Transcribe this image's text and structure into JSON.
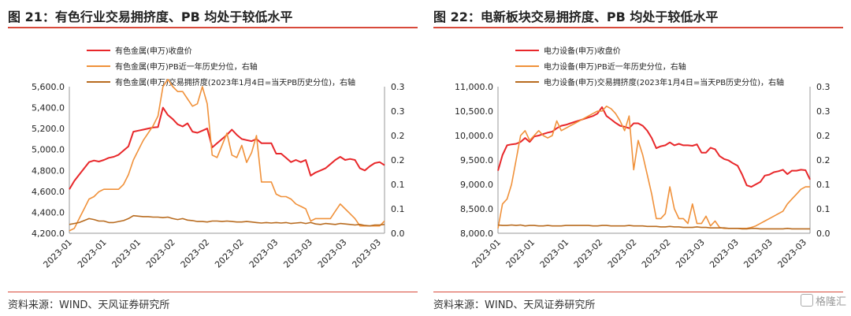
{
  "panels": [
    {
      "title": "图 21：有色行业交易拥挤度、PB 均处于较低水平",
      "source": "资料来源：WIND、天风证券研究所",
      "chart_data": {
        "type": "line",
        "x_tick_labels": [
          "2023-01",
          "2023-01",
          "2023-01",
          "2023-02",
          "2023-02",
          "2023-02",
          "2023-03",
          "2023-03",
          "2023-03",
          "2023-03"
        ],
        "ylim_left": [
          4200,
          5600
        ],
        "yticks_left": [
          "4,200.0",
          "4,400.0",
          "4,600.0",
          "4,800.0",
          "5,000.0",
          "5,200.0",
          "5,400.0",
          "5,600.0"
        ],
        "ylim_right": [
          0,
          0.3
        ],
        "yticks_right": [
          "0.0",
          "0.1",
          "0.1",
          "0.2",
          "0.2",
          "0.3",
          "0.3"
        ],
        "grid": false,
        "legend_position": "top",
        "series": [
          {
            "name": "有色金属(申万)收盘价",
            "axis": "left",
            "color": "#e8272a",
            "values": [
              4620,
              4700,
              4760,
              4820,
              4880,
              4895,
              4885,
              4900,
              4920,
              4930,
              4950,
              4990,
              5030,
              5170,
              5180,
              5190,
              5200,
              5210,
              5215,
              5400,
              5330,
              5290,
              5240,
              5220,
              5250,
              5170,
              5160,
              5180,
              5200,
              5020,
              5060,
              5100,
              5140,
              5190,
              5140,
              5100,
              5090,
              5080,
              5100,
              5060,
              5060,
              5060,
              4960,
              4960,
              4920,
              4880,
              4900,
              4880,
              4900,
              4750,
              4780,
              4800,
              4820,
              4860,
              4900,
              4930,
              4900,
              4910,
              4900,
              4820,
              4800,
              4840,
              4870,
              4880,
              4850
            ]
          },
          {
            "name": "有色金属(申万)PB近一年历史分位，右轴",
            "axis": "right",
            "color": "#f0913a",
            "values": [
              0.005,
              0.01,
              0.03,
              0.05,
              0.07,
              0.075,
              0.085,
              0.09,
              0.09,
              0.09,
              0.09,
              0.1,
              0.12,
              0.15,
              0.17,
              0.19,
              0.205,
              0.22,
              0.24,
              0.3,
              0.315,
              0.3,
              0.29,
              0.29,
              0.275,
              0.26,
              0.265,
              0.3,
              0.265,
              0.16,
              0.155,
              0.18,
              0.205,
              0.16,
              0.155,
              0.18,
              0.145,
              0.165,
              0.2,
              0.105,
              0.105,
              0.105,
              0.08,
              0.075,
              0.075,
              0.07,
              0.06,
              0.055,
              0.05,
              0.025,
              0.03,
              0.03,
              0.03,
              0.03,
              0.045,
              0.06,
              0.05,
              0.04,
              0.03,
              0.015,
              0.015,
              0.015,
              0.015,
              0.015,
              0.025
            ]
          },
          {
            "name": "有色金属(申万)交易拥挤度(2023年1月4日=当天PB历史分位)，右轴",
            "axis": "right",
            "color": "#b86b1f",
            "values": [
              0.018,
              0.02,
              0.022,
              0.026,
              0.03,
              0.028,
              0.025,
              0.025,
              0.022,
              0.022,
              0.024,
              0.026,
              0.03,
              0.036,
              0.035,
              0.034,
              0.034,
              0.033,
              0.033,
              0.032,
              0.033,
              0.03,
              0.028,
              0.03,
              0.027,
              0.026,
              0.024,
              0.024,
              0.023,
              0.025,
              0.025,
              0.024,
              0.025,
              0.024,
              0.023,
              0.023,
              0.024,
              0.023,
              0.022,
              0.021,
              0.022,
              0.021,
              0.022,
              0.021,
              0.022,
              0.02,
              0.021,
              0.022,
              0.02,
              0.022,
              0.019,
              0.018,
              0.02,
              0.019,
              0.018,
              0.02,
              0.019,
              0.018,
              0.017,
              0.018,
              0.016,
              0.015,
              0.017,
              0.017,
              0.018
            ]
          }
        ]
      }
    },
    {
      "title": "图 22：电新板块交易拥挤度、PB 均处于较低水平",
      "source": "资料来源：WIND、天风证券研究所",
      "chart_data": {
        "type": "line",
        "x_tick_labels": [
          "2023-01",
          "2023-01",
          "2023-01",
          "2023-02",
          "2023-02",
          "2023-02",
          "2023-03",
          "2023-03",
          "2023-03",
          "2023-03"
        ],
        "ylim_left": [
          8000,
          11000
        ],
        "yticks_left": [
          "8,000.0",
          "8,500.0",
          "9,000.0",
          "9,500.0",
          "10,000.0",
          "10,500.0",
          "11,000.0"
        ],
        "ylim_right": [
          0,
          0.3
        ],
        "yticks_right": [
          "0.0",
          "0.1",
          "0.1",
          "0.2",
          "0.2",
          "0.3",
          "0.3"
        ],
        "grid": false,
        "legend_position": "top",
        "series": [
          {
            "name": "电力设备(申万)收盘价",
            "axis": "left",
            "color": "#e8272a",
            "values": [
              9280,
              9600,
              9800,
              9820,
              9830,
              9870,
              9950,
              9870,
              9980,
              10000,
              10030,
              10060,
              10080,
              10150,
              10200,
              10220,
              10250,
              10280,
              10310,
              10340,
              10370,
              10400,
              10450,
              10580,
              10400,
              10330,
              10260,
              10200,
              10180,
              10150,
              10250,
              10250,
              10200,
              10100,
              9950,
              9740,
              9780,
              9800,
              9860,
              9800,
              9830,
              9800,
              9800,
              9790,
              9820,
              9650,
              9650,
              9750,
              9720,
              9580,
              9520,
              9490,
              9430,
              9380,
              9200,
              8980,
              8950,
              9000,
              9050,
              9180,
              9200,
              9250,
              9270,
              9300,
              9210,
              9280,
              9280,
              9300,
              9290,
              9100
            ]
          },
          {
            "name": "电力设备(申万)PB近一年历史分位，右轴",
            "axis": "right",
            "color": "#f0913a",
            "values": [
              0.01,
              0.06,
              0.07,
              0.1,
              0.15,
              0.2,
              0.21,
              0.19,
              0.2,
              0.21,
              0.2,
              0.195,
              0.2,
              0.23,
              0.21,
              0.215,
              0.22,
              0.225,
              0.23,
              0.235,
              0.24,
              0.245,
              0.25,
              0.25,
              0.26,
              0.255,
              0.245,
              0.23,
              0.21,
              0.24,
              0.13,
              0.19,
              0.16,
              0.12,
              0.08,
              0.03,
              0.03,
              0.04,
              0.095,
              0.05,
              0.03,
              0.03,
              0.02,
              0.06,
              0.02,
              0.02,
              0.035,
              0.015,
              0.025,
              0.012,
              0.01,
              0.01,
              0.01,
              0.01,
              0.01,
              0.01,
              0.012,
              0.015,
              0.02,
              0.025,
              0.03,
              0.035,
              0.04,
              0.045,
              0.06,
              0.07,
              0.08,
              0.09,
              0.095,
              0.095
            ]
          },
          {
            "name": "电力设备(申万)交易拥挤度(2023年1月4日=当天PB历史分位)，右轴",
            "axis": "right",
            "color": "#b86b1f",
            "values": [
              0.017,
              0.016,
              0.016,
              0.017,
              0.016,
              0.017,
              0.015,
              0.016,
              0.016,
              0.015,
              0.015,
              0.016,
              0.015,
              0.015,
              0.015,
              0.016,
              0.016,
              0.016,
              0.016,
              0.016,
              0.016,
              0.015,
              0.015,
              0.016,
              0.016,
              0.015,
              0.015,
              0.015,
              0.015,
              0.016,
              0.015,
              0.015,
              0.015,
              0.014,
              0.014,
              0.014,
              0.013,
              0.013,
              0.014,
              0.013,
              0.013,
              0.012,
              0.012,
              0.012,
              0.013,
              0.012,
              0.012,
              0.011,
              0.011,
              0.011,
              0.011,
              0.01,
              0.01,
              0.01,
              0.009,
              0.009,
              0.01,
              0.01,
              0.009,
              0.009,
              0.009,
              0.009,
              0.009,
              0.009,
              0.01,
              0.009,
              0.009,
              0.009,
              0.009,
              0.009
            ]
          }
        ]
      }
    }
  ],
  "watermark": "格隆汇",
  "colors": {
    "accent": "#d84a3b"
  }
}
